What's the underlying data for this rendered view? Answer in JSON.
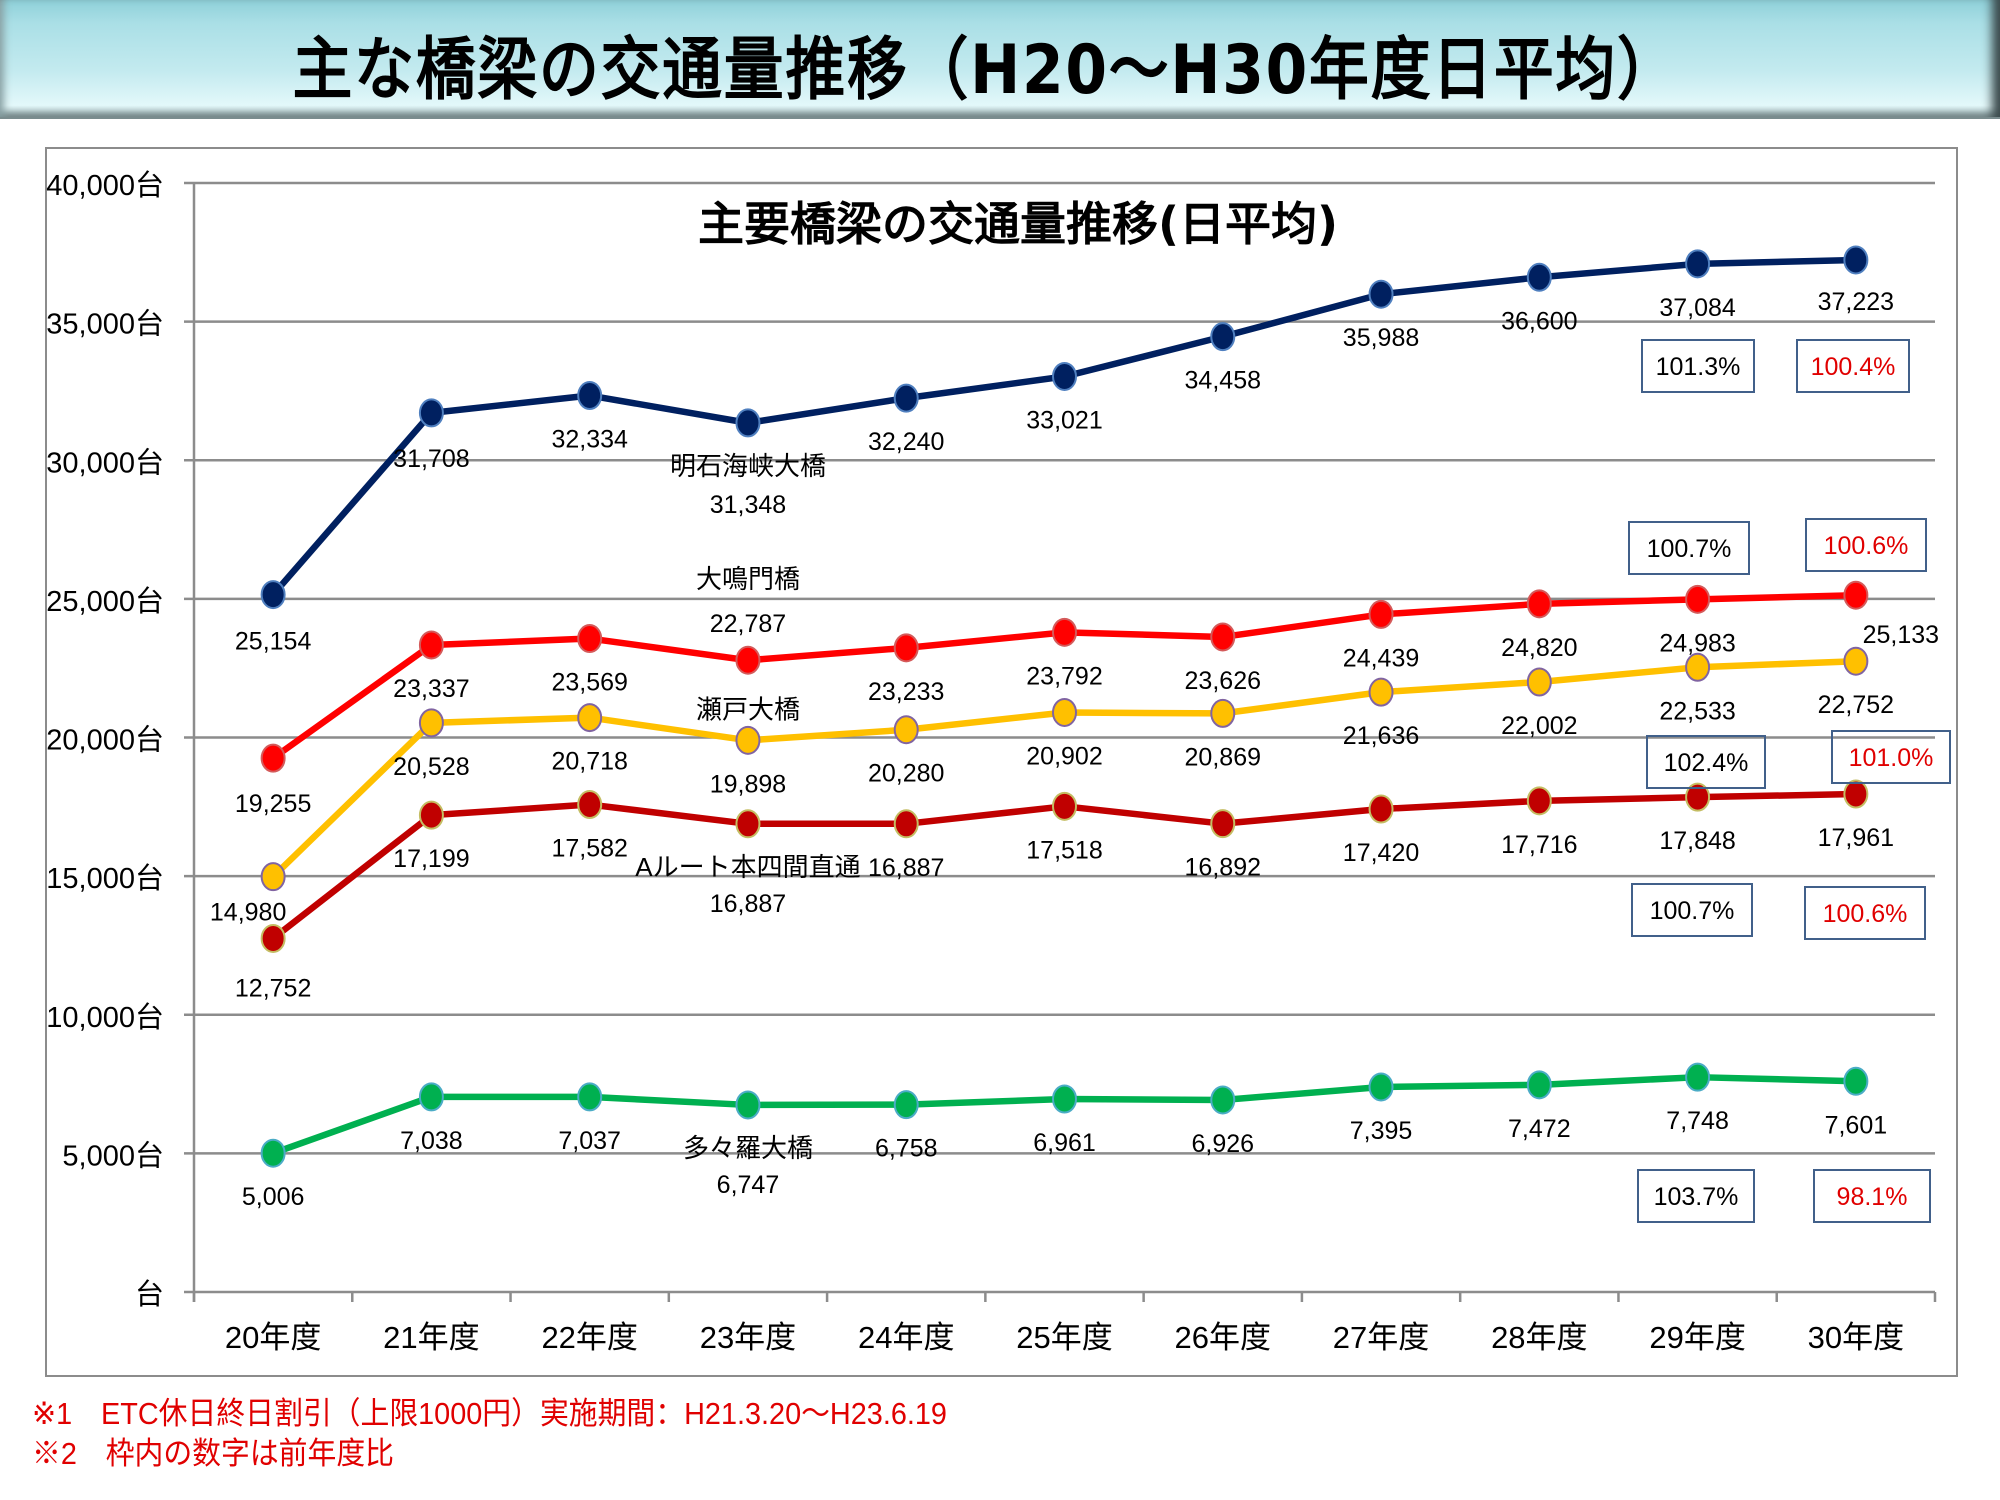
{
  "header": {
    "title": "主な橋梁の交通量推移（H20～H30年度日平均）"
  },
  "footnotes": [
    "※1　ETC休日終日割引（上限1000円）実施期間：H21.3.20～H23.6.19",
    "※2　枠内の数字は前年度比"
  ],
  "chart_data": {
    "type": "line",
    "title": "主要橋梁の交通量推移(日平均)",
    "xlabel": "",
    "ylabel": "",
    "categories": [
      "20年度",
      "21年度",
      "22年度",
      "23年度",
      "24年度",
      "25年度",
      "26年度",
      "27年度",
      "28年度",
      "29年度",
      "30年度"
    ],
    "ylim": [
      0,
      40000
    ],
    "yticks": [
      0,
      5000,
      10000,
      15000,
      20000,
      25000,
      30000,
      35000,
      40000
    ],
    "ytick_labels": [
      "台",
      "5,000台",
      "10,000台",
      "15,000台",
      "20,000台",
      "25,000台",
      "30,000台",
      "35,000台",
      "40,000台"
    ],
    "grid": true,
    "legend": "none (series names shown as inline labels at 23年度)",
    "series": [
      {
        "name": "明石海峡大橋",
        "color": "#002060",
        "values": [
          25154,
          31708,
          32334,
          31348,
          32240,
          33021,
          34458,
          35988,
          36600,
          37084,
          37223
        ],
        "labels": [
          "25,154",
          "31,708",
          "32,334",
          "31,348",
          "32,240",
          "33,021",
          "34,458",
          "35,988",
          "36,600",
          "37,084",
          "37,223"
        ],
        "yoy_ratios": [
          {
            "category": "29年度",
            "text": "101.3%",
            "color": "#000000"
          },
          {
            "category": "30年度",
            "text": "100.4%",
            "color": "#e00000"
          }
        ]
      },
      {
        "name": "大鳴門橋",
        "color": "#ff0000",
        "values": [
          19255,
          23337,
          23569,
          22787,
          23233,
          23792,
          23626,
          24439,
          24820,
          24983,
          25133
        ],
        "labels": [
          "19,255",
          "23,337",
          "23,569",
          "22,787",
          "23,233",
          "23,792",
          "23,626",
          "24,439",
          "24,820",
          "24,983",
          "25,133"
        ],
        "yoy_ratios": [
          {
            "category": "29年度",
            "text": "100.7%",
            "color": "#000000"
          },
          {
            "category": "30年度",
            "text": "100.6%",
            "color": "#e00000"
          }
        ]
      },
      {
        "name": "瀬戸大橋",
        "color": "#ffc000",
        "values": [
          14980,
          20528,
          20718,
          19898,
          20280,
          20902,
          20869,
          21636,
          22002,
          22533,
          22752
        ],
        "labels": [
          "14,980",
          "20,528",
          "20,718",
          "19,898",
          "20,280",
          "20,902",
          "20,869",
          "21,636",
          "22,002",
          "22,533",
          "22,752"
        ],
        "yoy_ratios": [
          {
            "category": "29年度",
            "text": "102.4%",
            "color": "#000000"
          },
          {
            "category": "30年度",
            "text": "101.0%",
            "color": "#e00000"
          }
        ]
      },
      {
        "name": "Aルート本四間直通",
        "color": "#c00000",
        "values": [
          12752,
          17199,
          17582,
          16887,
          16887,
          17518,
          16892,
          17420,
          17716,
          17848,
          17961
        ],
        "labels": [
          "12,752",
          "17,199",
          "17,582",
          "16,887",
          "16,887",
          "17,518",
          "16,892",
          "17,420",
          "17,716",
          "17,848",
          "17,961"
        ],
        "yoy_ratios": [
          {
            "category": "29年度",
            "text": "100.7%",
            "color": "#000000"
          },
          {
            "category": "30年度",
            "text": "100.6%",
            "color": "#e00000"
          }
        ]
      },
      {
        "name": "多々羅大橋",
        "color": "#00b050",
        "values": [
          5006,
          7038,
          7037,
          6747,
          6758,
          6961,
          6926,
          7395,
          7472,
          7748,
          7601
        ],
        "labels": [
          "5,006",
          "7,038",
          "7,037",
          "6,747",
          "6,758",
          "6,961",
          "6,926",
          "7,395",
          "7,472",
          "7,748",
          "7,601"
        ],
        "yoy_ratios": [
          {
            "category": "29年度",
            "text": "103.7%",
            "color": "#000000"
          },
          {
            "category": "30年度",
            "text": "98.1%",
            "color": "#e00000"
          }
        ]
      }
    ]
  }
}
